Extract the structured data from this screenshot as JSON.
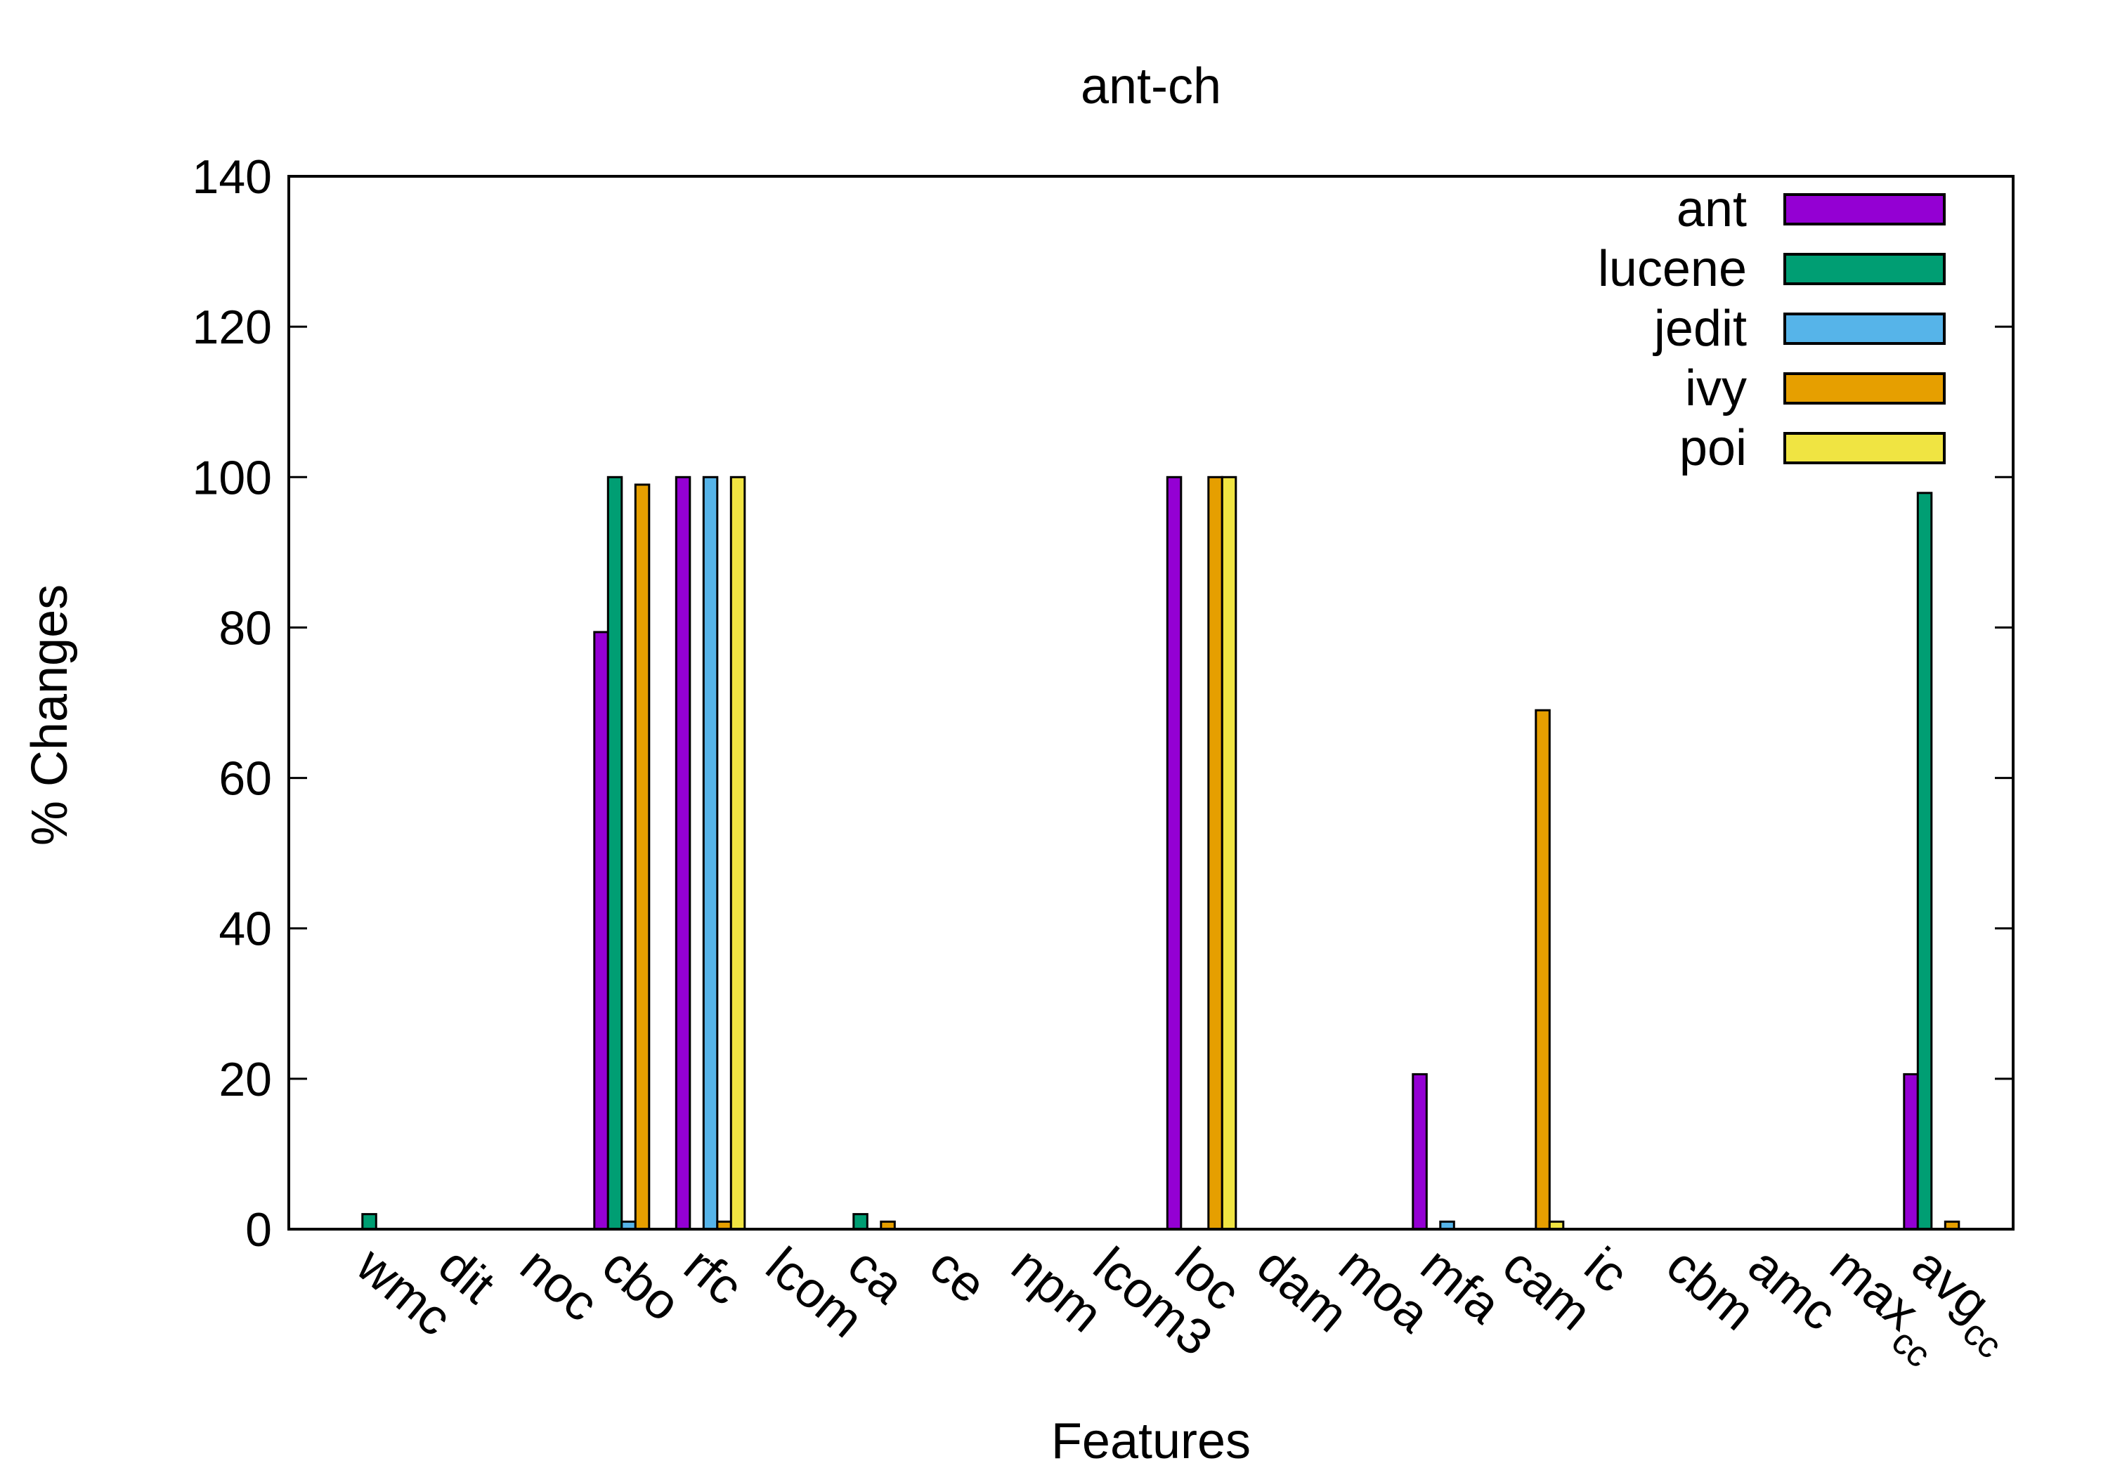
{
  "chart_data": {
    "type": "bar",
    "title": "ant-ch",
    "xlabel": "Features",
    "ylabel": "% Changes",
    "ylim": [
      0,
      140
    ],
    "yticks": [
      0,
      20,
      40,
      60,
      80,
      100,
      120,
      140
    ],
    "categories": [
      "wmc",
      "dit",
      "noc",
      "cbo",
      "rfc",
      "lcom",
      "ca",
      "ce",
      "npm",
      "lcom3",
      "loc",
      "dam",
      "moa",
      "mfa",
      "cam",
      "ic",
      "cbm",
      "amc",
      "max_cc",
      "avg_cc"
    ],
    "category_labels": [
      {
        "main": "wmc"
      },
      {
        "main": "dit"
      },
      {
        "main": "noc"
      },
      {
        "main": "cbo"
      },
      {
        "main": "rfc"
      },
      {
        "main": "lcom"
      },
      {
        "main": "ca"
      },
      {
        "main": "ce"
      },
      {
        "main": "npm"
      },
      {
        "main": "lcom3"
      },
      {
        "main": "loc"
      },
      {
        "main": "dam"
      },
      {
        "main": "moa"
      },
      {
        "main": "mfa"
      },
      {
        "main": "cam"
      },
      {
        "main": "ic"
      },
      {
        "main": "cbm"
      },
      {
        "main": "amc"
      },
      {
        "main": "max",
        "sub": "cc"
      },
      {
        "main": "avg",
        "sub": "cc"
      }
    ],
    "legend_position": "top-right",
    "grid": false,
    "series": [
      {
        "name": "ant",
        "color": "#9400d3",
        "values": [
          0,
          0,
          0,
          79.4,
          100,
          0,
          0,
          0,
          0,
          0,
          100,
          0,
          0,
          20.6,
          0,
          0,
          0,
          0,
          0,
          20.6
        ]
      },
      {
        "name": "lucene",
        "color": "#009e73",
        "values": [
          2,
          0,
          0,
          100,
          0,
          0,
          2,
          0,
          0,
          0,
          0,
          0,
          0,
          0,
          0,
          0,
          0,
          0,
          0,
          97.9
        ]
      },
      {
        "name": "jedit",
        "color": "#56b4e9",
        "values": [
          0,
          0,
          0,
          1,
          100,
          0,
          0,
          0,
          0,
          0,
          0,
          0,
          0,
          1,
          0,
          0,
          0,
          0,
          0,
          0
        ]
      },
      {
        "name": "ivy",
        "color": "#e69f00",
        "values": [
          0,
          0,
          0,
          99,
          1,
          0,
          1,
          0,
          0,
          0,
          100,
          0,
          0,
          0,
          69,
          0,
          0,
          0,
          0,
          1
        ]
      },
      {
        "name": "poi",
        "color": "#f0e442",
        "values": [
          0,
          0,
          0,
          0,
          100,
          0,
          0,
          0,
          0,
          0,
          100,
          0,
          0,
          0,
          1,
          0,
          0,
          0,
          0,
          0
        ]
      }
    ]
  }
}
